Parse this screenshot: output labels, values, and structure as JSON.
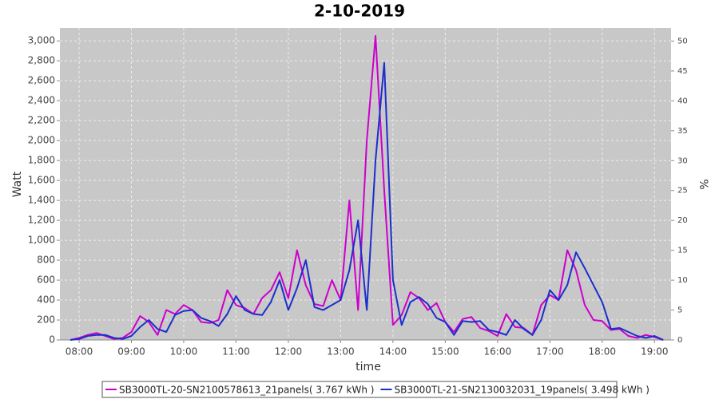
{
  "chart_data": {
    "type": "line",
    "title": "2-10-2019",
    "x_label": "time",
    "y_label": "Watt",
    "y2_label": "%",
    "x": [
      "07:50",
      "08:00",
      "08:10",
      "08:20",
      "08:30",
      "08:40",
      "08:50",
      "09:00",
      "09:10",
      "09:20",
      "09:30",
      "09:40",
      "09:50",
      "10:00",
      "10:10",
      "10:20",
      "10:30",
      "10:40",
      "10:50",
      "11:00",
      "11:10",
      "11:20",
      "11:30",
      "11:40",
      "11:50",
      "12:00",
      "12:10",
      "12:20",
      "12:30",
      "12:40",
      "12:50",
      "13:00",
      "13:10",
      "13:20",
      "13:30",
      "13:40",
      "13:50",
      "14:00",
      "14:10",
      "14:20",
      "14:30",
      "14:40",
      "14:50",
      "15:00",
      "15:10",
      "15:20",
      "15:30",
      "15:40",
      "15:50",
      "16:00",
      "16:10",
      "16:20",
      "16:30",
      "16:40",
      "16:50",
      "17:00",
      "17:10",
      "17:20",
      "17:30",
      "17:40",
      "17:50",
      "18:00",
      "18:10",
      "18:20",
      "18:30",
      "18:40",
      "18:50",
      "19:00",
      "19:10"
    ],
    "series": [
      {
        "name": "SB3000TL-20-SN2100578613_21panels( 3.767 kWh )",
        "color": "#cc00cc",
        "values": [
          0,
          20,
          50,
          70,
          40,
          10,
          20,
          80,
          240,
          180,
          50,
          300,
          260,
          350,
          300,
          180,
          170,
          200,
          500,
          350,
          320,
          260,
          420,
          500,
          680,
          420,
          900,
          550,
          360,
          340,
          600,
          400,
          1400,
          300,
          2000,
          3050,
          1500,
          150,
          250,
          480,
          420,
          300,
          370,
          180,
          80,
          210,
          230,
          120,
          90,
          40,
          260,
          130,
          120,
          50,
          350,
          450,
          400,
          900,
          700,
          350,
          200,
          190,
          100,
          110,
          40,
          20,
          50,
          30,
          0
        ]
      },
      {
        "name": "SB3000TL-21-SN2130032031_19panels( 3.498 kWh )",
        "color": "#1a2fcc",
        "values": [
          0,
          10,
          40,
          50,
          50,
          20,
          10,
          40,
          130,
          200,
          110,
          80,
          250,
          290,
          300,
          220,
          190,
          140,
          260,
          440,
          300,
          260,
          250,
          380,
          600,
          300,
          520,
          800,
          330,
          300,
          350,
          400,
          700,
          1200,
          300,
          1800,
          2780,
          600,
          150,
          380,
          430,
          360,
          220,
          180,
          50,
          190,
          180,
          190,
          100,
          80,
          50,
          200,
          110,
          50,
          200,
          500,
          400,
          550,
          880,
          720,
          550,
          380,
          110,
          120,
          80,
          40,
          20,
          40,
          0
        ]
      }
    ],
    "xlim": [
      "07:38",
      "19:19"
    ],
    "xticks": [
      "08:00",
      "09:00",
      "10:00",
      "11:00",
      "12:00",
      "13:00",
      "14:00",
      "15:00",
      "16:00",
      "17:00",
      "18:00",
      "19:00"
    ],
    "ylim": [
      0,
      3130
    ],
    "yticks": [
      0,
      200,
      400,
      600,
      800,
      {
        "value": 1000,
        "label": "1,000"
      },
      {
        "value": 1200,
        "label": "1,200"
      },
      {
        "value": 1400,
        "label": "1,400"
      },
      {
        "value": 1600,
        "label": "1,600"
      },
      {
        "value": 1800,
        "label": "1,800"
      },
      {
        "value": 2000,
        "label": "2,000"
      },
      {
        "value": 2200,
        "label": "2,200"
      },
      {
        "value": 2400,
        "label": "2,400"
      },
      {
        "value": 2600,
        "label": "2,600"
      },
      {
        "value": 2800,
        "label": "2,800"
      },
      {
        "value": 3000,
        "label": "3,000"
      }
    ],
    "y2lim": [
      0,
      52.2
    ],
    "y2ticks": [
      0,
      5,
      10,
      15,
      20,
      25,
      30,
      35,
      40,
      45,
      50
    ],
    "grid": true,
    "legend": "bottom",
    "plot_background": "#c8c8c8"
  }
}
